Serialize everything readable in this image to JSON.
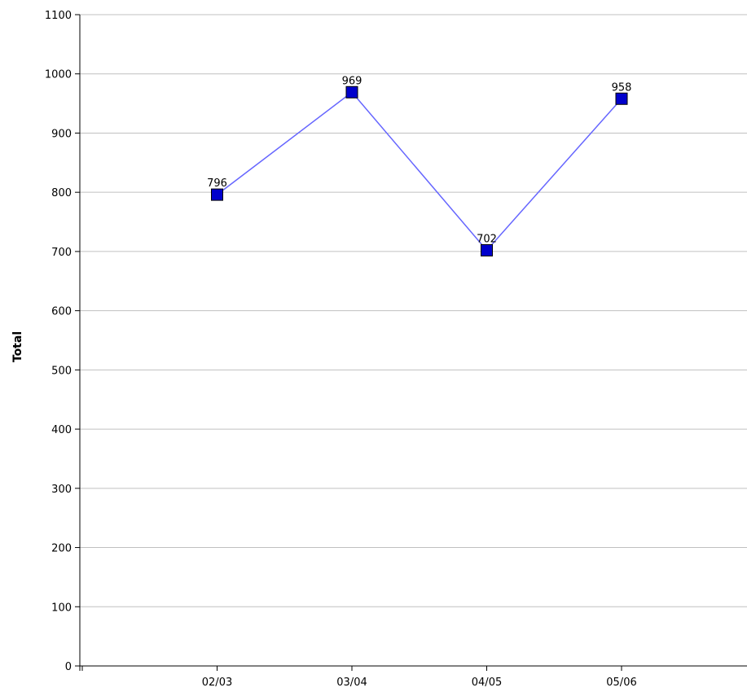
{
  "chart_data": {
    "type": "line",
    "title": "",
    "xlabel": "",
    "ylabel": "Total",
    "categories": [
      "02/03",
      "03/04",
      "04/05",
      "05/06"
    ],
    "series": [
      {
        "values": [
          796,
          969,
          702,
          958
        ]
      }
    ],
    "ylim": [
      0,
      1100
    ],
    "yticks": [
      0,
      100,
      200,
      300,
      400,
      500,
      600,
      700,
      800,
      900,
      1000,
      1100
    ],
    "grid": true,
    "legend": "none",
    "colors": {
      "line": "#6666ff",
      "marker_fill": "#0000cc",
      "marker_stroke": "#000000",
      "grid": "#c0c0c0",
      "axis": "#000000"
    }
  }
}
